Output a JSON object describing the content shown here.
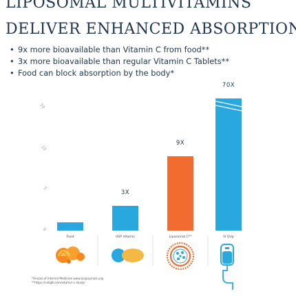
{
  "headline": {
    "line1": "LIPOSOMAL MULTIVITAMINS",
    "line2": "DELIVER ENHANCED ABSORPTION."
  },
  "bullets": [
    "9x more bioavailable than Vitamin C from food**",
    "3x more bioavailable than regular Vitamin C Tablets**",
    "Food can block absorption by the body*"
  ],
  "bullet_symbol": "•",
  "colors": {
    "navy": "#1f3550",
    "blue": "#29a8df",
    "orange": "#f26b2f",
    "yellow": "#f4b844"
  },
  "chart_data": {
    "type": "bar",
    "categories": [
      "Food",
      "USP Vitamin",
      "Liposomal C**",
      "IV Drip"
    ],
    "values": [
      1,
      3,
      9,
      70
    ],
    "data_labels": [
      "",
      "3X",
      "9X",
      "70X"
    ],
    "bar_colors": [
      "#29a8df",
      "#29a8df",
      "#f26b2f",
      "#29a8df"
    ],
    "y_tick_labels": [
      "0",
      "5",
      "10",
      "50",
      "100"
    ],
    "broken_axis": true,
    "grid": false
  },
  "icons": [
    "orange-fruit-icon",
    "tablet-icon",
    "liposome-icon",
    "iv-drip-bag-icon"
  ],
  "footnotes": [
    "*Annals of Internal Medicine www.acpjournals.org",
    "**https://celig8.com/vitamin-c-study/"
  ]
}
